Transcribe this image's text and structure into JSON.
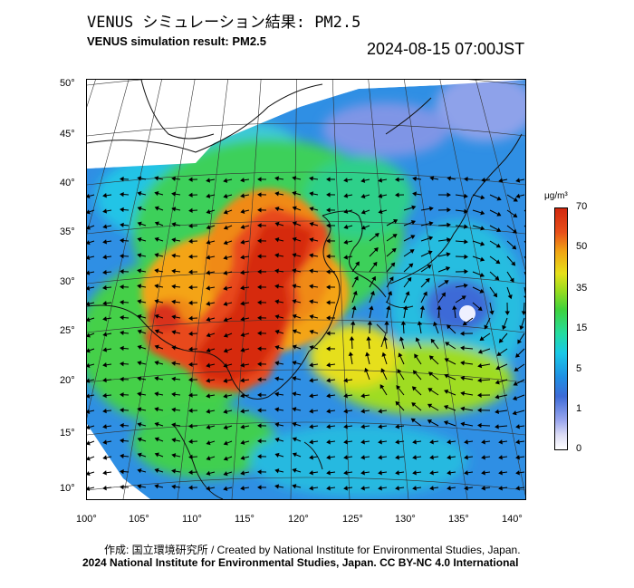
{
  "header": {
    "title_jp": "VENUS シミュレーション結果: PM2.5",
    "title_en": "VENUS simulation result: PM2.5",
    "datetime": "2024-08-15 07:00JST"
  },
  "map": {
    "lat_labels": [
      "50°",
      "45°",
      "40°",
      "35°",
      "30°",
      "25°",
      "20°",
      "15°",
      "10°"
    ],
    "lon_labels": [
      "100°",
      "105°",
      "110°",
      "115°",
      "120°",
      "125°",
      "130°",
      "135°",
      "140°"
    ],
    "field": "PM2.5 concentration with wind vectors",
    "high_concentration_region": "Eastern China"
  },
  "colorbar": {
    "unit": "μg/m³",
    "ticks": [
      "70",
      "50",
      "35",
      "15",
      "5",
      "1",
      "0"
    ]
  },
  "footer": {
    "credit": "作成: 国立環境研究所 / Created by National Institute for Environmental Studies, Japan.",
    "copyright": "2024 National Institute for Environmental Studies, Japan. CC BY-NC 4.0 International"
  }
}
